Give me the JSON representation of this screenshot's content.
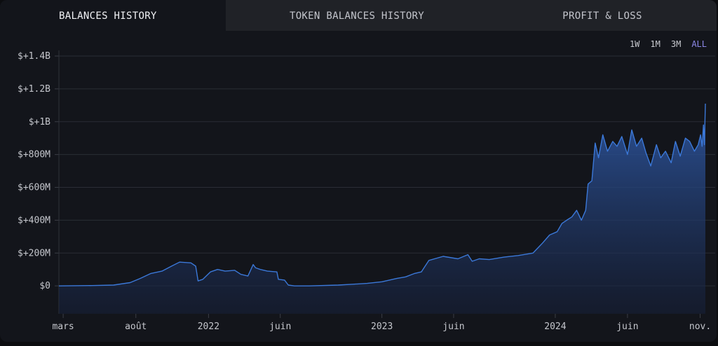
{
  "tabs": [
    {
      "label": "BALANCES HISTORY"
    },
    {
      "label": "TOKEN BALANCES HISTORY"
    },
    {
      "label": "PROFIT & LOSS"
    }
  ],
  "ranges": [
    {
      "label": "1W"
    },
    {
      "label": "1M"
    },
    {
      "label": "3M"
    },
    {
      "label": "ALL"
    }
  ],
  "colors": {
    "line": "#3b78d8",
    "fill_top": "#2f5aa8",
    "fill_bottom": "#16203a",
    "active_range": "#8c88e6"
  },
  "chart_data": {
    "type": "area",
    "grid": "horizontal",
    "ylim": [
      -170000000,
      1400000000
    ],
    "y_ticks": [
      {
        "value": 1400000000,
        "label": "$+1.4B"
      },
      {
        "value": 1200000000,
        "label": "$+1.2B"
      },
      {
        "value": 1000000000,
        "label": "$+1B"
      },
      {
        "value": 800000000,
        "label": "$+800M"
      },
      {
        "value": 600000000,
        "label": "$+600M"
      },
      {
        "value": 400000000,
        "label": "$+400M"
      },
      {
        "value": 200000000,
        "label": "$+200M"
      },
      {
        "value": 0,
        "label": "$0"
      }
    ],
    "xlim": [
      "2021-02-20",
      "2024-11-12"
    ],
    "x_ticks": [
      {
        "date": "2021-03-01",
        "label": "mars"
      },
      {
        "date": "2021-08-01",
        "label": "août"
      },
      {
        "date": "2022-01-01",
        "label": "2022"
      },
      {
        "date": "2022-06-01",
        "label": "juin"
      },
      {
        "date": "2023-01-01",
        "label": "2023"
      },
      {
        "date": "2023-06-01",
        "label": "juin"
      },
      {
        "date": "2024-01-01",
        "label": "2024"
      },
      {
        "date": "2024-06-01",
        "label": "juin"
      },
      {
        "date": "2024-11-01",
        "label": "nov."
      }
    ],
    "series": [
      {
        "x": [
          "2021-02-20",
          "2021-05-01",
          "2021-06-15",
          "2021-07-20",
          "2021-08-10",
          "2021-09-01",
          "2021-09-25",
          "2021-10-15",
          "2021-11-01",
          "2021-11-25",
          "2021-12-05",
          "2021-12-10",
          "2021-12-20",
          "2022-01-05",
          "2022-01-20",
          "2022-02-05",
          "2022-02-25",
          "2022-03-10",
          "2022-03-25",
          "2022-04-05",
          "2022-04-10",
          "2022-04-20",
          "2022-05-05",
          "2022-05-25",
          "2022-05-28",
          "2022-06-10",
          "2022-06-18",
          "2022-07-01",
          "2022-08-01",
          "2022-10-01",
          "2022-11-01",
          "2022-12-01",
          "2023-01-01",
          "2023-02-01",
          "2023-02-20",
          "2023-03-10",
          "2023-03-25",
          "2023-04-10",
          "2023-05-10",
          "2023-06-10",
          "2023-07-01",
          "2023-07-10",
          "2023-07-25",
          "2023-08-15",
          "2023-09-15",
          "2023-10-15",
          "2023-11-15",
          "2023-12-05",
          "2023-12-20",
          "2024-01-05",
          "2024-01-15",
          "2024-01-25",
          "2024-02-05",
          "2024-02-15",
          "2024-02-25",
          "2024-03-05",
          "2024-03-10",
          "2024-03-18",
          "2024-03-25",
          "2024-04-01",
          "2024-04-10",
          "2024-04-20",
          "2024-05-01",
          "2024-05-10",
          "2024-05-20",
          "2024-06-01",
          "2024-06-10",
          "2024-06-20",
          "2024-07-01",
          "2024-07-10",
          "2024-07-20",
          "2024-08-01",
          "2024-08-10",
          "2024-08-20",
          "2024-09-01",
          "2024-09-10",
          "2024-09-20",
          "2024-10-01",
          "2024-10-10",
          "2024-10-20",
          "2024-10-28",
          "2024-11-02",
          "2024-11-05",
          "2024-11-08",
          "2024-11-10",
          "2024-11-12"
        ],
        "y": [
          0,
          2000000,
          5000000,
          20000000,
          45000000,
          75000000,
          90000000,
          120000000,
          145000000,
          140000000,
          120000000,
          30000000,
          40000000,
          85000000,
          100000000,
          90000000,
          95000000,
          70000000,
          60000000,
          130000000,
          110000000,
          100000000,
          90000000,
          85000000,
          40000000,
          35000000,
          5000000,
          0,
          0,
          5000000,
          10000000,
          15000000,
          25000000,
          45000000,
          55000000,
          75000000,
          85000000,
          155000000,
          180000000,
          165000000,
          190000000,
          150000000,
          165000000,
          160000000,
          175000000,
          185000000,
          200000000,
          260000000,
          310000000,
          330000000,
          380000000,
          400000000,
          420000000,
          460000000,
          400000000,
          460000000,
          620000000,
          640000000,
          870000000,
          780000000,
          920000000,
          820000000,
          880000000,
          850000000,
          910000000,
          800000000,
          950000000,
          850000000,
          900000000,
          810000000,
          730000000,
          860000000,
          780000000,
          820000000,
          750000000,
          880000000,
          790000000,
          900000000,
          880000000,
          820000000,
          860000000,
          920000000,
          850000000,
          980000000,
          860000000,
          1110000000
        ]
      }
    ]
  }
}
